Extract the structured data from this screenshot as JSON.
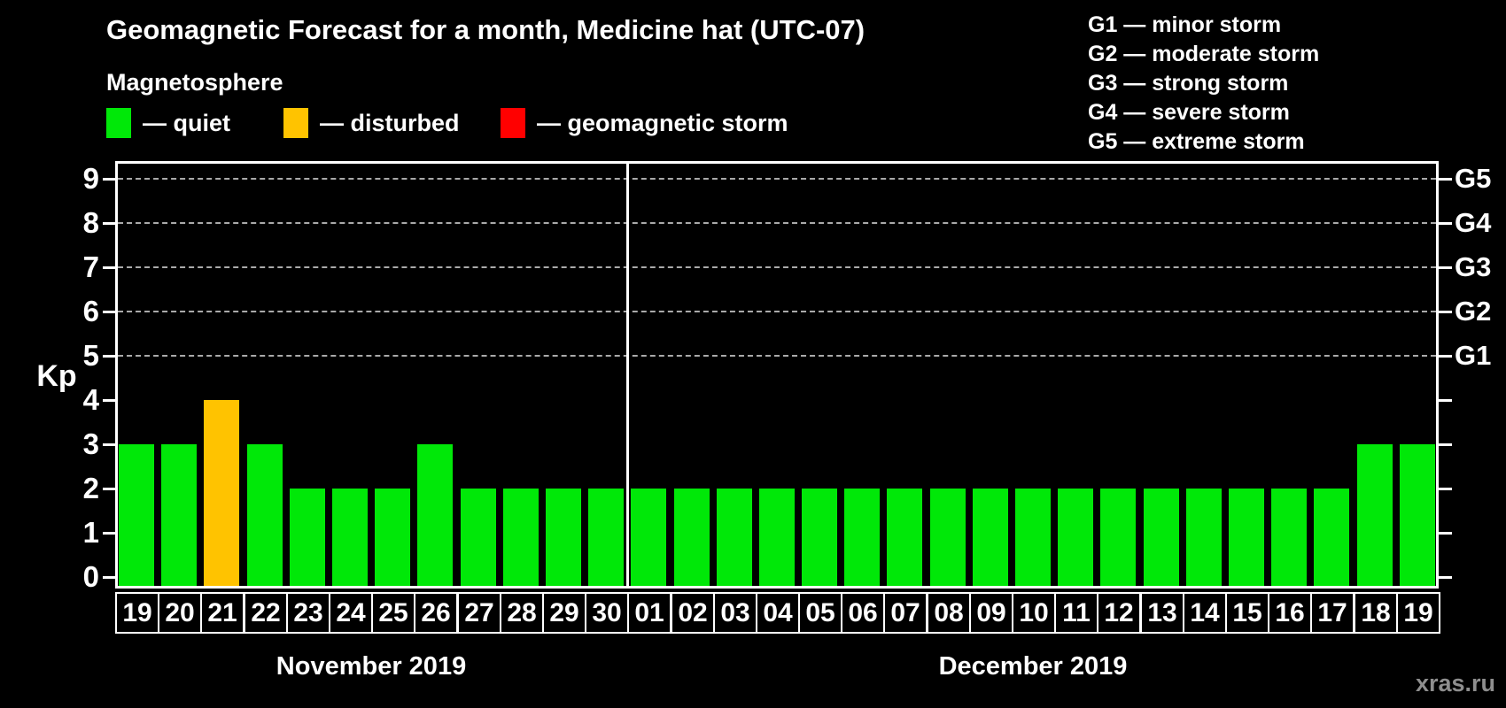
{
  "title": "Geomagnetic Forecast for a month, Medicine hat (UTC-07)",
  "legend": {
    "heading": "Magnetosphere",
    "items": [
      {
        "name": "quiet",
        "label": "— quiet",
        "color": "#00e808"
      },
      {
        "name": "disturbed",
        "label": "— disturbed",
        "color": "#ffc300"
      },
      {
        "name": "storm",
        "label": "— geomagnetic storm",
        "color": "#ff0000"
      }
    ]
  },
  "g_legend": [
    "G1 — minor storm",
    "G2 — moderate storm",
    "G3 — strong storm",
    "G4 — severe storm",
    "G5 — extreme storm"
  ],
  "watermark": "xras.ru",
  "colors": {
    "background": "#000000",
    "text": "#ffffff",
    "grid": "#aaaaaa",
    "watermark": "#8e8e8e"
  },
  "chart_data": {
    "type": "bar",
    "title": "Geomagnetic Forecast for a month, Medicine hat (UTC-07)",
    "ylabel": "Kp",
    "y_ticks": [
      0,
      1,
      2,
      3,
      4,
      5,
      6,
      7,
      8,
      9
    ],
    "ylim": [
      -0.3,
      9.4
    ],
    "grid": "horizontal dashed lines at Kp 5-9 only",
    "gridlines_kp": [
      5,
      6,
      7,
      8,
      9
    ],
    "right_axis_labels": [
      {
        "kp": 5,
        "label": "G1"
      },
      {
        "kp": 6,
        "label": "G2"
      },
      {
        "kp": 7,
        "label": "G3"
      },
      {
        "kp": 8,
        "label": "G4"
      },
      {
        "kp": 9,
        "label": "G5"
      }
    ],
    "colors": {
      "quiet": "#00e808",
      "disturbed": "#ffc300",
      "storm": "#ff0000"
    },
    "groups": [
      {
        "month": "November 2019",
        "days": [
          "19",
          "20",
          "21",
          "22",
          "23",
          "24",
          "25",
          "26",
          "27",
          "28",
          "29",
          "30"
        ],
        "values": [
          3,
          3,
          4,
          3,
          2,
          2,
          2,
          3,
          2,
          2,
          2,
          2
        ],
        "states": [
          "quiet",
          "quiet",
          "disturbed",
          "quiet",
          "quiet",
          "quiet",
          "quiet",
          "quiet",
          "quiet",
          "quiet",
          "quiet",
          "quiet"
        ]
      },
      {
        "month": "December 2019",
        "days": [
          "01",
          "02",
          "03",
          "04",
          "05",
          "06",
          "07",
          "08",
          "09",
          "10",
          "11",
          "12",
          "13",
          "14",
          "15",
          "16",
          "17",
          "18",
          "19"
        ],
        "values": [
          2,
          2,
          2,
          2,
          2,
          2,
          2,
          2,
          2,
          2,
          2,
          2,
          2,
          2,
          2,
          2,
          2,
          3,
          3
        ],
        "states": [
          "quiet",
          "quiet",
          "quiet",
          "quiet",
          "quiet",
          "quiet",
          "quiet",
          "quiet",
          "quiet",
          "quiet",
          "quiet",
          "quiet",
          "quiet",
          "quiet",
          "quiet",
          "quiet",
          "quiet",
          "quiet",
          "quiet"
        ]
      }
    ]
  }
}
